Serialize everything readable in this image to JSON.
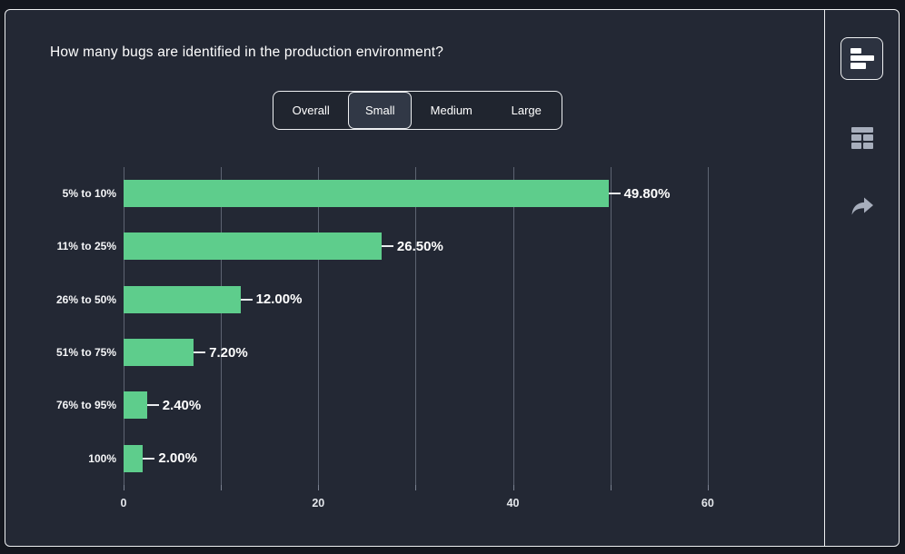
{
  "window": {
    "page_bg": "#14171f",
    "panel_bg": "#232834",
    "border_color": "#eef0f2"
  },
  "header": {
    "title": "How many bugs are identified in the production environment?"
  },
  "tabs": {
    "items": [
      {
        "label": "Overall",
        "selected": false
      },
      {
        "label": "Small",
        "selected": true
      },
      {
        "label": "Medium",
        "selected": false
      },
      {
        "label": "Large",
        "selected": false
      }
    ]
  },
  "chart_data": {
    "type": "bar",
    "orientation": "horizontal",
    "title": "How many bugs are identified in the production environment?",
    "selected_segment": "Small",
    "categories": [
      "5% to 10%",
      "11% to 25%",
      "26% to 50%",
      "51% to 75%",
      "76% to 95%",
      "100%"
    ],
    "values": [
      49.8,
      26.5,
      12.0,
      7.2,
      2.4,
      2.0
    ],
    "value_labels": [
      "49.80%",
      "26.50%",
      "12.00%",
      "7.20%",
      "2.40%",
      "2.00%"
    ],
    "x_tick_labels": [
      0,
      20,
      40,
      60
    ],
    "x_gridlines": [
      0,
      10,
      20,
      30,
      40,
      50,
      60
    ],
    "xlim": [
      0,
      70
    ],
    "bar_color": "#5ecd8c",
    "grid": true,
    "legend": "none"
  },
  "sidebar": {
    "buttons": [
      {
        "name": "bar-chart-view",
        "icon": "horizontal-bar-chart-icon",
        "active": true
      },
      {
        "name": "table-view",
        "icon": "table-icon",
        "active": false
      },
      {
        "name": "share",
        "icon": "share-arrow-icon",
        "active": false
      }
    ]
  }
}
